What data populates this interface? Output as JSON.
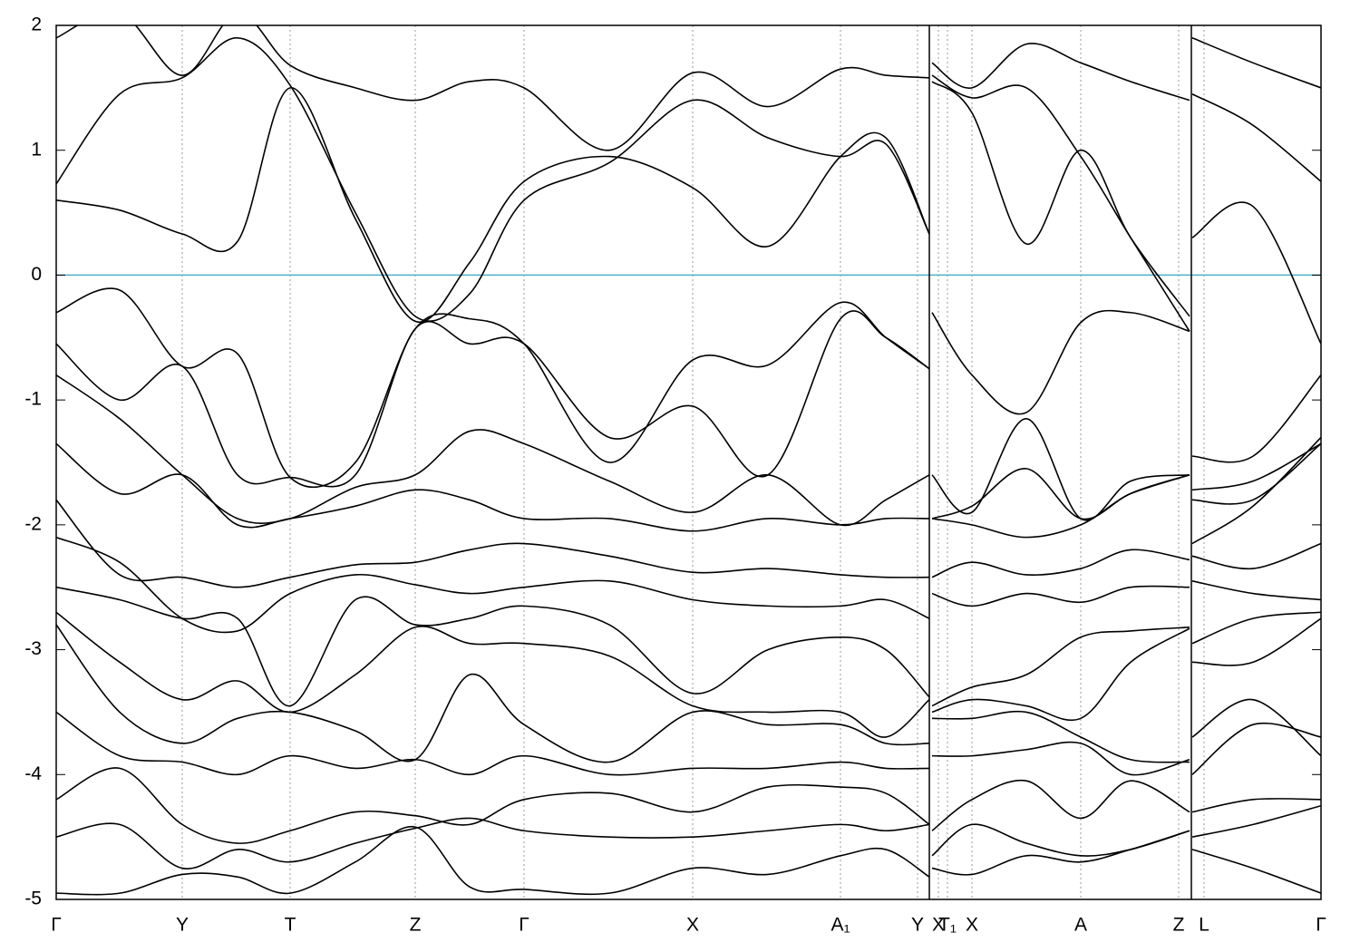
{
  "chart_data": {
    "type": "line",
    "xlim": [
      0,
      1395
    ],
    "ylim": [
      -5,
      2
    ],
    "yticks": [
      2,
      1,
      0,
      -1,
      -2,
      -3,
      -4,
      -5
    ],
    "xticks": [
      {
        "value": 0,
        "label": "Γ"
      },
      {
        "value": 139,
        "label": "Y"
      },
      {
        "value": 258,
        "label": "T"
      },
      {
        "value": 396,
        "label": "Z"
      },
      {
        "value": 516,
        "label": "Γ"
      },
      {
        "value": 702,
        "label": "X"
      },
      {
        "value": 865,
        "label": "A₁"
      },
      {
        "value": 950,
        "label": "Y"
      },
      {
        "value": 973,
        "label": "X"
      },
      {
        "value": 983,
        "label": "T₁"
      },
      {
        "value": 1010,
        "label": "X"
      },
      {
        "value": 1130,
        "label": "A"
      },
      {
        "value": 1238,
        "label": "Z"
      },
      {
        "value": 1266,
        "label": "L"
      },
      {
        "value": 1395,
        "label": "Γ"
      }
    ],
    "grid": true,
    "fermi_level": 0,
    "fermi_color": "#4cb0c8",
    "x": [
      0,
      70,
      139,
      200,
      258,
      330,
      396,
      456,
      516,
      610,
      702,
      785,
      865,
      915,
      963,
      964,
      966,
      1010,
      1070,
      1130,
      1185,
      1250,
      1251,
      1253,
      1320,
      1395
    ],
    "series": [
      {
        "color": "#000000",
        "values": [
          1.9,
          2.1,
          1.6,
          2.1,
          1.68,
          1.5,
          1.4,
          1.55,
          1.5,
          1.0,
          1.62,
          1.35,
          1.65,
          1.6,
          1.58,
          null,
          1.7,
          1.5,
          1.85,
          1.7,
          1.55,
          1.4,
          null,
          1.9,
          1.7,
          1.5
        ]
      },
      {
        "color": "#000000",
        "values": [
          0.73,
          1.45,
          1.58,
          1.9,
          1.52,
          0.5,
          -0.33,
          -0.15,
          0.6,
          0.9,
          1.4,
          1.1,
          0.95,
          1.05,
          0.33,
          null,
          1.55,
          1.3,
          0.25,
          1.0,
          0.3,
          -0.33,
          null,
          1.45,
          1.2,
          0.75
        ]
      },
      {
        "color": "#000000",
        "values": [
          0.6,
          0.52,
          0.33,
          0.27,
          1.5,
          0.45,
          -0.37,
          0.1,
          0.75,
          0.95,
          0.7,
          0.23,
          0.95,
          1.1,
          0.33,
          null,
          1.6,
          1.42,
          1.5,
          0.95,
          0.3,
          -0.45,
          null,
          0.3,
          0.55,
          -0.55
        ]
      },
      {
        "color": "#000000",
        "values": [
          -0.3,
          -0.12,
          -0.73,
          -0.63,
          -1.62,
          -1.5,
          -0.43,
          -0.35,
          -0.55,
          -1.5,
          -0.68,
          -0.72,
          -0.22,
          -0.5,
          -0.75,
          null,
          -0.3,
          -0.8,
          -1.1,
          -0.38,
          -0.3,
          -0.45,
          null,
          -1.45,
          -1.45,
          -0.8
        ]
      },
      {
        "color": "#000000",
        "values": [
          -0.55,
          -1.0,
          -0.73,
          -1.6,
          -1.62,
          -1.6,
          -0.43,
          -0.55,
          -0.55,
          -1.3,
          -1.05,
          -1.6,
          -0.35,
          -0.5,
          -0.75,
          null,
          -1.6,
          -1.9,
          -1.15,
          -1.95,
          -1.65,
          -1.6,
          null,
          -1.72,
          -1.65,
          -1.35
        ]
      },
      {
        "color": "#000000",
        "values": [
          -0.8,
          -1.15,
          -1.6,
          -1.95,
          -1.95,
          -1.7,
          -1.6,
          -1.25,
          -1.35,
          -1.65,
          -1.9,
          -1.6,
          -2.0,
          -1.8,
          -1.6,
          null,
          -1.95,
          -1.85,
          -1.55,
          -1.95,
          -1.75,
          -1.6,
          null,
          -1.8,
          -1.8,
          -1.35
        ]
      },
      {
        "color": "#000000",
        "values": [
          -1.35,
          -1.75,
          -1.6,
          -2.0,
          -1.95,
          -1.85,
          -1.72,
          -1.8,
          -1.95,
          -1.95,
          -2.05,
          -1.95,
          -2.0,
          -1.95,
          -1.95,
          null,
          -1.95,
          -2.0,
          -2.1,
          -2.0,
          -1.75,
          -1.6,
          null,
          -2.15,
          -1.85,
          -1.3
        ]
      },
      {
        "color": "#000000",
        "values": [
          -1.8,
          -2.4,
          -2.42,
          -2.5,
          -2.42,
          -2.32,
          -2.3,
          -2.2,
          -2.15,
          -2.25,
          -2.38,
          -2.35,
          -2.4,
          -2.42,
          -2.42,
          null,
          -2.42,
          -2.3,
          -2.4,
          -2.35,
          -2.2,
          -2.28,
          null,
          -2.25,
          -2.35,
          -2.15
        ]
      },
      {
        "color": "#000000",
        "values": [
          -2.1,
          -2.3,
          -2.75,
          -2.85,
          -2.55,
          -2.4,
          -2.48,
          -2.55,
          -2.5,
          -2.45,
          -2.6,
          -2.65,
          -2.65,
          -2.6,
          -2.75,
          null,
          -2.55,
          -2.65,
          -2.55,
          -2.62,
          -2.5,
          -2.5,
          null,
          -2.45,
          -2.55,
          -2.6
        ]
      },
      {
        "color": "#000000",
        "values": [
          -2.5,
          -2.6,
          -2.75,
          -2.75,
          -3.45,
          -2.6,
          -2.8,
          -2.75,
          -2.65,
          -2.8,
          -3.35,
          -3.0,
          -2.9,
          -3.0,
          -3.38,
          null,
          -3.45,
          -3.3,
          -3.2,
          -2.9,
          -2.85,
          -2.82,
          null,
          -2.95,
          -2.75,
          -2.7
        ]
      },
      {
        "color": "#000000",
        "values": [
          -2.7,
          -3.1,
          -3.4,
          -3.25,
          -3.5,
          -3.2,
          -2.82,
          -2.95,
          -2.95,
          -3.05,
          -3.45,
          -3.5,
          -3.5,
          -3.7,
          -3.4,
          null,
          -3.5,
          -3.4,
          -3.45,
          -3.55,
          -3.1,
          -2.83,
          null,
          -3.1,
          -3.1,
          -2.75
        ]
      },
      {
        "color": "#000000",
        "values": [
          -2.8,
          -3.5,
          -3.75,
          -3.55,
          -3.5,
          -3.65,
          -3.88,
          -3.2,
          -3.6,
          -3.9,
          -3.5,
          -3.6,
          -3.6,
          -3.75,
          -3.75,
          null,
          -3.55,
          -3.55,
          -3.5,
          -3.7,
          -3.88,
          -3.9,
          null,
          -3.7,
          -3.4,
          -3.85
        ]
      },
      {
        "color": "#000000",
        "values": [
          -3.5,
          -3.85,
          -3.9,
          -4.0,
          -3.85,
          -3.95,
          -3.88,
          -4.0,
          -3.85,
          -4.0,
          -3.95,
          -3.95,
          -3.9,
          -3.95,
          -3.95,
          null,
          -3.85,
          -3.85,
          -3.8,
          -3.75,
          -4.0,
          -3.88,
          null,
          -4.0,
          -3.6,
          -3.7
        ]
      },
      {
        "color": "#000000",
        "values": [
          -4.2,
          -3.95,
          -4.4,
          -4.55,
          -4.45,
          -4.3,
          -4.33,
          -4.4,
          -4.2,
          -4.15,
          -4.3,
          -4.1,
          -4.1,
          -4.15,
          -4.4,
          null,
          -4.45,
          -4.2,
          -4.05,
          -4.35,
          -4.05,
          -4.3,
          null,
          -4.3,
          -4.2,
          -4.2
        ]
      },
      {
        "color": "#000000",
        "values": [
          -4.5,
          -4.4,
          -4.75,
          -4.6,
          -4.7,
          -4.55,
          -4.43,
          -4.35,
          -4.45,
          -4.5,
          -4.5,
          -4.45,
          -4.4,
          -4.45,
          -4.4,
          null,
          -4.65,
          -4.4,
          -4.55,
          -4.65,
          -4.6,
          -4.45,
          null,
          -4.5,
          -4.4,
          -4.25
        ]
      },
      {
        "color": "#000000",
        "values": [
          -4.95,
          -4.95,
          -4.8,
          -4.82,
          -4.95,
          -4.7,
          -4.42,
          -4.9,
          -4.92,
          -4.95,
          -4.75,
          -4.8,
          -4.65,
          -4.6,
          -4.82,
          null,
          -4.75,
          -4.8,
          -4.65,
          -4.7,
          -4.6,
          -4.45,
          null,
          -4.6,
          -4.75,
          -4.95
        ]
      }
    ]
  }
}
